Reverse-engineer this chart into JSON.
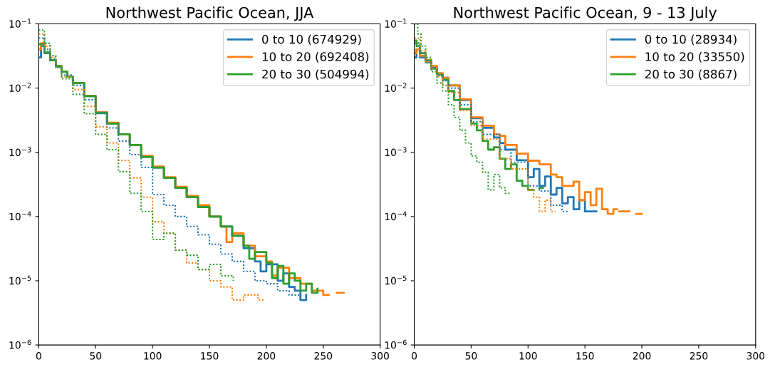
{
  "chart_data": [
    {
      "type": "step",
      "title": "Northwest Pacific Ocean, JJA",
      "log": "y",
      "legend": "top right",
      "grid": false,
      "xlim": [
        0,
        300
      ],
      "xticks": [
        0,
        50,
        100,
        150,
        200,
        250,
        300
      ],
      "ylim": [
        1e-06,
        0.1
      ],
      "yticks": [
        {
          "value": 1e-06,
          "label": "10$^{−6}$"
        },
        {
          "value": 1e-05,
          "label": "10$^{−5}$"
        },
        {
          "value": 0.0001,
          "label": "10$^{−4}$"
        },
        {
          "value": 0.001,
          "label": "10$^{−3}$"
        },
        {
          "value": 0.01,
          "label": "10$^{−2}$"
        },
        {
          "value": 0.1,
          "label": "10$^{−1}$"
        }
      ],
      "series": [
        {
          "name": "0 to 10 (674929)",
          "color": "#1f77b4",
          "line_style": "solid",
          "x": [
            0,
            2,
            5,
            10,
            15,
            20,
            25,
            30,
            40,
            50,
            60,
            70,
            80,
            90,
            100,
            110,
            120,
            130,
            140,
            150,
            160,
            170,
            180,
            190,
            195,
            200,
            210,
            215,
            220,
            225,
            230,
            235
          ],
          "values": [
            0.03,
            0.045,
            0.035,
            0.027,
            0.022,
            0.018,
            0.015,
            0.012,
            0.0075,
            0.0042,
            0.0028,
            0.0019,
            0.0013,
            0.00085,
            0.00058,
            0.0004,
            0.00028,
            0.0002,
            0.00014,
            0.0001,
            7e-05,
            5e-05,
            3.2e-05,
            2e-05,
            1.4e-05,
            1.8e-05,
            1e-05,
            1.3e-05,
            8e-06,
            7e-06,
            5e-06,
            6e-06
          ]
        },
        {
          "name": "10 to 20 (692408)",
          "color": "#ff7f0e",
          "line_style": "solid",
          "x": [
            0,
            2,
            5,
            10,
            15,
            20,
            25,
            30,
            40,
            50,
            60,
            70,
            80,
            90,
            100,
            110,
            120,
            130,
            140,
            150,
            160,
            165,
            170,
            180,
            190,
            200,
            205,
            210,
            220,
            230,
            240,
            250,
            255,
            262,
            268
          ],
          "values": [
            0.04,
            0.05,
            0.036,
            0.027,
            0.022,
            0.018,
            0.015,
            0.012,
            0.0076,
            0.0042,
            0.0029,
            0.0019,
            0.0013,
            0.00088,
            0.0006,
            0.00041,
            0.00029,
            0.00021,
            0.00015,
            0.0001,
            7e-05,
            4e-05,
            5.5e-05,
            3.5e-05,
            2.4e-05,
            2e-05,
            1.2e-05,
            1.6e-05,
            1.1e-05,
            9e-06,
            7e-06,
            6e-06,
            null,
            6.5e-06,
            6.5e-06
          ]
        },
        {
          "name": "20 to 30 (504994)",
          "color": "#2ca02c",
          "line_style": "solid",
          "x": [
            0,
            5,
            10,
            15,
            20,
            25,
            30,
            40,
            50,
            60,
            70,
            80,
            90,
            100,
            110,
            120,
            130,
            140,
            150,
            160,
            170,
            180,
            185,
            190,
            200,
            205,
            210,
            215,
            220,
            225,
            230,
            235,
            240,
            245
          ],
          "values": [
            0.048,
            0.036,
            0.027,
            0.022,
            0.018,
            0.015,
            0.012,
            0.0075,
            0.0041,
            0.0028,
            0.0019,
            0.0013,
            0.00085,
            0.00058,
            0.0004,
            0.00028,
            0.0002,
            0.00014,
            0.0001,
            7e-05,
            5e-05,
            3.5e-05,
            2.2e-05,
            2.8e-05,
            1.9e-05,
            1.1e-05,
            1.7e-05,
            9e-06,
            1.3e-05,
            1e-05,
            7e-06,
            9e-06,
            6.5e-06,
            7.5e-06
          ]
        },
        {
          "color": "#1f77b4",
          "line_style": "dotted",
          "x": [
            0,
            5,
            10,
            15,
            20,
            30,
            40,
            50,
            60,
            70,
            80,
            90,
            100,
            110,
            120,
            130,
            140,
            150,
            160,
            170,
            180,
            190,
            200,
            210,
            220,
            230
          ],
          "values": [
            0.06,
            0.04,
            0.028,
            0.021,
            0.016,
            0.011,
            0.0066,
            0.004,
            0.0024,
            0.0015,
            0.00092,
            0.00058,
            0.00022,
            0.00015,
            0.0001,
            7e-05,
            5.2e-05,
            3.7e-05,
            2.6e-05,
            2e-05,
            1.4e-05,
            1e-05,
            9e-06,
            7e-06,
            6e-06,
            5e-06
          ]
        },
        {
          "color": "#ff7f0e",
          "line_style": "dotted",
          "x": [
            0,
            5,
            10,
            15,
            20,
            30,
            40,
            50,
            60,
            70,
            80,
            90,
            100,
            110,
            120,
            130,
            140,
            150,
            160,
            170,
            180,
            193,
            198
          ],
          "values": [
            0.07,
            0.045,
            0.03,
            0.021,
            0.015,
            0.0095,
            0.0052,
            0.0025,
            0.0014,
            0.00075,
            0.0004,
            0.0002,
            8.3e-05,
            5.5e-05,
            3e-05,
            1.9e-05,
            1.5e-05,
            1e-05,
            8e-06,
            5e-06,
            6e-06,
            5e-06,
            5e-06
          ]
        },
        {
          "color": "#2ca02c",
          "line_style": "dotted",
          "x": [
            0,
            5,
            10,
            15,
            20,
            30,
            40,
            50,
            60,
            70,
            80,
            90,
            100,
            110,
            120,
            130,
            140,
            150,
            160,
            171
          ],
          "values": [
            0.08,
            0.05,
            0.032,
            0.021,
            0.014,
            0.008,
            0.004,
            0.0019,
            0.0011,
            0.0005,
            0.00023,
            0.00012,
            4.4e-05,
            5.5e-05,
            3e-05,
            2.5e-05,
            1.5e-05,
            1.8e-05,
            1.2e-05,
            1e-05
          ]
        }
      ]
    },
    {
      "type": "step",
      "title": "Northwest Pacific Ocean, 9 - 13 July",
      "log": "y",
      "legend": "top right",
      "grid": false,
      "xlim": [
        0,
        300
      ],
      "xticks": [
        0,
        50,
        100,
        150,
        200,
        250,
        300
      ],
      "ylim": [
        1e-06,
        0.1
      ],
      "yticks": [
        {
          "value": 1e-06,
          "label": "10$^{−6}$"
        },
        {
          "value": 1e-05,
          "label": "10$^{−5}$"
        },
        {
          "value": 0.0001,
          "label": "10$^{−4}$"
        },
        {
          "value": 0.001,
          "label": "10$^{−3}$"
        },
        {
          "value": 0.01,
          "label": "10$^{−2}$"
        },
        {
          "value": 0.1,
          "label": "10$^{−1}$"
        }
      ],
      "series": [
        {
          "name": "0 to 10 (28934)",
          "color": "#1f77b4",
          "line_style": "solid",
          "x": [
            0,
            2,
            5,
            10,
            15,
            20,
            25,
            30,
            40,
            50,
            60,
            70,
            75,
            80,
            90,
            100,
            105,
            110,
            115,
            120,
            125,
            130,
            135,
            140,
            145,
            150,
            160
          ],
          "values": [
            0.03,
            0.04,
            0.03,
            0.025,
            0.021,
            0.017,
            0.0145,
            0.011,
            0.0065,
            0.0034,
            0.0024,
            0.0017,
            0.0014,
            0.0011,
            0.00075,
            0.00041,
            0.00055,
            0.0003,
            0.00042,
            0.00022,
            0.00028,
            0.00016,
            0.0002,
            0.00013,
            0.00018,
            0.00012,
            0.00012
          ]
        },
        {
          "name": "10 to 20 (33550)",
          "color": "#ff7f0e",
          "line_style": "solid",
          "x": [
            0,
            2,
            5,
            10,
            15,
            20,
            25,
            30,
            40,
            50,
            60,
            70,
            75,
            80,
            90,
            100,
            110,
            120,
            125,
            130,
            140,
            145,
            150,
            155,
            160,
            165,
            170,
            175,
            178,
            180,
            187,
            189,
            195,
            200
          ],
          "values": [
            0.035,
            0.04,
            0.032,
            0.026,
            0.022,
            0.017,
            0.0145,
            0.011,
            0.0067,
            0.0035,
            0.0026,
            0.0019,
            0.0018,
            0.0013,
            0.00095,
            0.00074,
            0.00065,
            0.00045,
            0.00041,
            0.0003,
            0.00035,
            0.00018,
            0.00024,
            0.00015,
            0.00027,
            0.00013,
            0.00011,
            0.00013,
            null,
            0.00012,
            0.00012,
            null,
            0.00011,
            0.00011
          ]
        },
        {
          "name": "20 to 30 (8867)",
          "color": "#2ca02c",
          "line_style": "solid",
          "x": [
            0,
            2,
            5,
            10,
            15,
            20,
            25,
            30,
            35,
            40,
            50,
            55,
            60,
            65,
            70,
            75,
            80,
            85,
            90,
            95,
            100,
            105,
            110,
            113
          ],
          "values": [
            0.055,
            0.045,
            0.035,
            0.027,
            0.02,
            0.016,
            0.0135,
            0.009,
            0.0065,
            0.0047,
            0.0028,
            0.0022,
            0.0015,
            0.0011,
            0.0012,
            0.00079,
            0.00055,
            0.00065,
            0.00036,
            0.0003,
            0.00026,
            null,
            0.00028,
            0.00028
          ]
        },
        {
          "color": "#1f77b4",
          "line_style": "dotted",
          "x": [
            0,
            5,
            10,
            15,
            20,
            25,
            30,
            40,
            50,
            60,
            75,
            85,
            100,
            110,
            120,
            130,
            135
          ],
          "values": [
            0.05,
            0.035,
            0.027,
            0.02,
            0.016,
            0.013,
            0.01,
            0.0055,
            0.003,
            0.0019,
            0.0011,
            0.0007,
            0.0003,
            0.00025,
            0.00015,
            0.00012,
            0.00012
          ]
        },
        {
          "color": "#ff7f0e",
          "line_style": "dotted",
          "x": [
            0,
            5,
            10,
            15,
            20,
            25,
            30,
            40,
            50,
            60,
            75,
            85,
            100,
            105,
            110,
            115,
            120,
            124
          ],
          "values": [
            0.06,
            0.038,
            0.028,
            0.02,
            0.015,
            0.011,
            0.0085,
            0.0045,
            0.0026,
            0.0016,
            0.0008,
            0.00055,
            0.00026,
            0.0002,
            0.00012,
            0.00018,
            0.00012,
            0.00012
          ]
        },
        {
          "color": "#2ca02c",
          "line_style": "dotted",
          "x": [
            0,
            3,
            6,
            10,
            15,
            20,
            25,
            30,
            35,
            40,
            45,
            50,
            55,
            60,
            65,
            70,
            75,
            80,
            84
          ],
          "values": [
            0.1,
            0.07,
            0.045,
            0.03,
            0.018,
            0.012,
            0.009,
            0.0055,
            0.0035,
            0.0022,
            0.0014,
            0.00088,
            0.0007,
            0.00049,
            0.00026,
            0.00045,
            0.00028,
            0.00023,
            0.00023
          ]
        }
      ]
    }
  ]
}
